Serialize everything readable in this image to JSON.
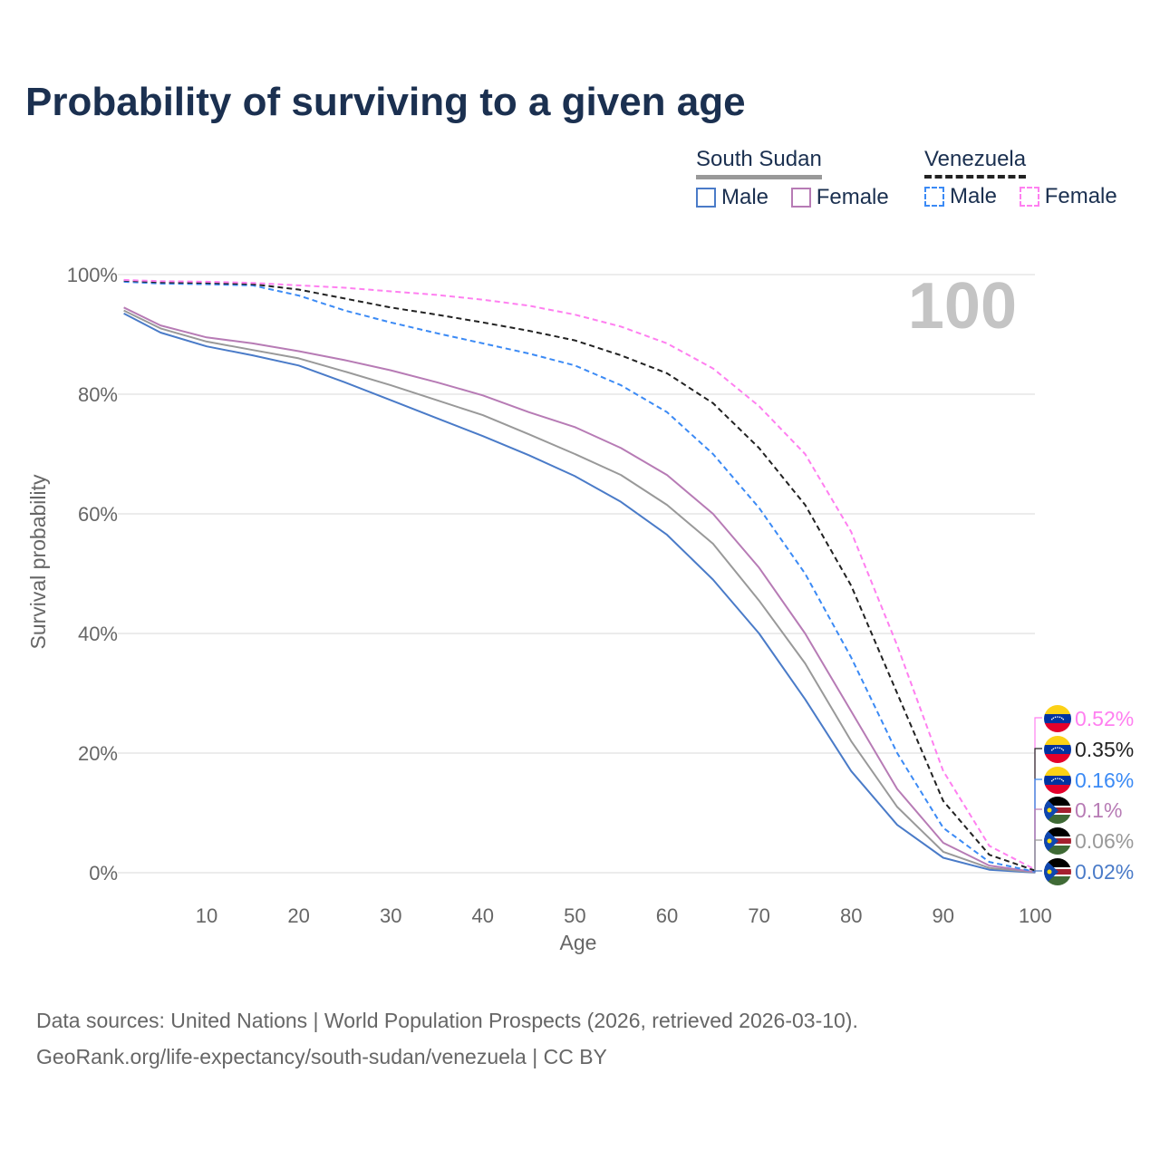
{
  "title": "Probability of surviving to a given age",
  "legend": {
    "groups": [
      {
        "name": "South Sudan",
        "items": [
          {
            "label": "Male",
            "color": "#4a7bc8",
            "dashed": false
          },
          {
            "label": "Female",
            "color": "#b77bb5",
            "dashed": false
          }
        ]
      },
      {
        "name": "Venezuela",
        "items": [
          {
            "label": "Male",
            "color": "#3b8af5",
            "dashed": true
          },
          {
            "label": "Female",
            "color": "#ff7ff0",
            "dashed": true
          }
        ]
      }
    ]
  },
  "age_marker": "100",
  "footer": {
    "line1": "Data sources: United Nations | World Population Prospects (2026, retrieved 2026-03-10).",
    "line2": "GeoRank.org/life-expectancy/south-sudan/venezuela | CC BY"
  },
  "chart_data": {
    "type": "line",
    "title": "Probability of surviving to a given age",
    "xlabel": "Age",
    "ylabel": "Survival probability",
    "xlim": [
      0,
      100
    ],
    "ylim": [
      0,
      100
    ],
    "xticks": [
      10,
      20,
      30,
      40,
      50,
      60,
      70,
      80,
      90,
      100
    ],
    "yticks": [
      0,
      20,
      40,
      60,
      80,
      100
    ],
    "ytick_labels": [
      "0%",
      "20%",
      "40%",
      "60%",
      "80%",
      "100%"
    ],
    "grid": true,
    "x": [
      1,
      5,
      10,
      15,
      20,
      25,
      30,
      35,
      40,
      45,
      50,
      55,
      60,
      65,
      70,
      75,
      80,
      85,
      90,
      95,
      100
    ],
    "series": [
      {
        "name": "South Sudan Male",
        "color": "#4a7bc8",
        "dashed": false,
        "flag": "south-sudan",
        "end_label": "0.02%",
        "values": [
          93.5,
          90.3,
          88,
          86.5,
          84.8,
          82,
          79,
          76,
          73,
          69.8,
          66.3,
          62,
          56.5,
          49,
          40,
          29,
          17,
          8,
          2.5,
          0.5,
          0.02
        ]
      },
      {
        "name": "South Sudan Total",
        "color": "#999999",
        "dashed": false,
        "flag": "south-sudan",
        "end_label": "0.06%",
        "values": [
          94,
          91,
          88.8,
          87.4,
          86,
          83.8,
          81.5,
          79,
          76.5,
          73.3,
          70,
          66.5,
          61.5,
          55,
          45.5,
          35,
          22,
          11,
          3.5,
          0.8,
          0.06
        ]
      },
      {
        "name": "South Sudan Female",
        "color": "#b77bb5",
        "dashed": false,
        "flag": "south-sudan",
        "end_label": "0.1%",
        "values": [
          94.5,
          91.5,
          89.5,
          88.5,
          87.2,
          85.7,
          84,
          82,
          79.8,
          77,
          74.5,
          71,
          66.5,
          60,
          51,
          40,
          27,
          14,
          5,
          1.2,
          0.1
        ]
      },
      {
        "name": "Venezuela Male",
        "color": "#3b8af5",
        "dashed": true,
        "flag": "venezuela",
        "end_label": "0.16%",
        "values": [
          98.8,
          98.5,
          98.4,
          98.2,
          96.5,
          94,
          92,
          90.2,
          88.5,
          86.8,
          84.8,
          81.5,
          77,
          70,
          61,
          50,
          36,
          20,
          7.5,
          1.8,
          0.16
        ]
      },
      {
        "name": "Venezuela Total",
        "color": "#222222",
        "dashed": true,
        "flag": "venezuela",
        "end_label": "0.35%",
        "values": [
          99,
          98.7,
          98.6,
          98.4,
          97.5,
          96,
          94.5,
          93.3,
          92,
          90.6,
          89,
          86.5,
          83.5,
          78.5,
          71,
          61.5,
          48,
          30,
          12,
          3,
          0.35
        ]
      },
      {
        "name": "Venezuela Female",
        "color": "#ff7ff0",
        "dashed": true,
        "flag": "venezuela",
        "end_label": "0.52%",
        "values": [
          99.1,
          98.9,
          98.8,
          98.6,
          98.2,
          97.8,
          97.2,
          96.6,
          95.8,
          94.8,
          93.3,
          91.3,
          88.5,
          84.3,
          78,
          70,
          57,
          38,
          17,
          4.5,
          0.52
        ]
      }
    ]
  }
}
